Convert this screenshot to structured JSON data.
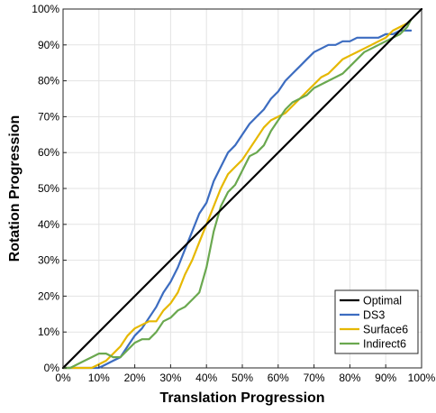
{
  "chart_data": {
    "type": "line",
    "title": "",
    "xlabel": "Translation Progression",
    "ylabel": "Rotation Progression",
    "xlim": [
      0,
      100
    ],
    "ylim": [
      0,
      100
    ],
    "xticks": [
      "0%",
      "10%",
      "20%",
      "30%",
      "40%",
      "50%",
      "60%",
      "70%",
      "80%",
      "90%",
      "100%"
    ],
    "yticks": [
      "0%",
      "10%",
      "20%",
      "30%",
      "40%",
      "50%",
      "60%",
      "70%",
      "80%",
      "90%",
      "100%"
    ],
    "grid": true,
    "legend_position": "bottom-right",
    "series": [
      {
        "name": "Optimal",
        "color": "#000000",
        "x": [
          0,
          100
        ],
        "y": [
          0,
          100
        ]
      },
      {
        "name": "DS3",
        "color": "#3c6cc0",
        "x": [
          0,
          2,
          4,
          6,
          8,
          10,
          12,
          14,
          16,
          18,
          20,
          22,
          24,
          26,
          28,
          30,
          32,
          34,
          36,
          38,
          40,
          42,
          44,
          46,
          48,
          50,
          52,
          54,
          56,
          58,
          60,
          62,
          64,
          66,
          68,
          70,
          72,
          74,
          76,
          78,
          80,
          82,
          84,
          86,
          88,
          90,
          92,
          94,
          96,
          97
        ],
        "y": [
          0,
          0,
          0,
          0,
          0,
          0,
          1,
          2,
          3,
          6,
          9,
          11,
          14,
          17,
          21,
          24,
          28,
          33,
          38,
          43,
          46,
          52,
          56,
          60,
          62,
          65,
          68,
          70,
          72,
          75,
          77,
          80,
          82,
          84,
          86,
          88,
          89,
          90,
          90,
          91,
          91,
          92,
          92,
          92,
          92,
          93,
          93,
          94,
          94,
          94
        ]
      },
      {
        "name": "Surface6",
        "color": "#e6b800",
        "x": [
          0,
          2,
          4,
          6,
          8,
          10,
          12,
          14,
          16,
          18,
          20,
          22,
          24,
          26,
          28,
          30,
          32,
          34,
          36,
          38,
          40,
          42,
          44,
          46,
          48,
          50,
          52,
          54,
          56,
          58,
          60,
          62,
          64,
          66,
          68,
          70,
          72,
          74,
          76,
          78,
          80,
          82,
          84,
          86,
          88,
          90,
          92,
          94,
          96,
          97
        ],
        "y": [
          0,
          0,
          0,
          0,
          0,
          1,
          2,
          4,
          6,
          9,
          11,
          12,
          13,
          13,
          16,
          18,
          21,
          26,
          30,
          35,
          40,
          45,
          50,
          54,
          56,
          58,
          61,
          64,
          67,
          69,
          70,
          71,
          73,
          75,
          77,
          79,
          81,
          82,
          84,
          86,
          87,
          88,
          89,
          90,
          91,
          92,
          94,
          95,
          96,
          97
        ]
      },
      {
        "name": "Indirect6",
        "color": "#6aa84f",
        "x": [
          0,
          2,
          4,
          6,
          8,
          10,
          12,
          14,
          16,
          18,
          20,
          22,
          24,
          26,
          28,
          30,
          32,
          34,
          36,
          38,
          40,
          42,
          44,
          46,
          48,
          50,
          52,
          54,
          56,
          58,
          60,
          62,
          64,
          66,
          68,
          70,
          72,
          74,
          76,
          78,
          80,
          82,
          84,
          86,
          88,
          90,
          92,
          94,
          96,
          97
        ],
        "y": [
          0,
          0,
          1,
          2,
          3,
          4,
          4,
          3,
          3,
          5,
          7,
          8,
          8,
          10,
          13,
          14,
          16,
          17,
          19,
          21,
          28,
          38,
          45,
          49,
          51,
          55,
          59,
          60,
          62,
          66,
          69,
          72,
          74,
          75,
          76,
          78,
          79,
          80,
          81,
          82,
          84,
          86,
          88,
          89,
          90,
          91,
          92,
          93,
          95,
          97
        ]
      }
    ]
  }
}
